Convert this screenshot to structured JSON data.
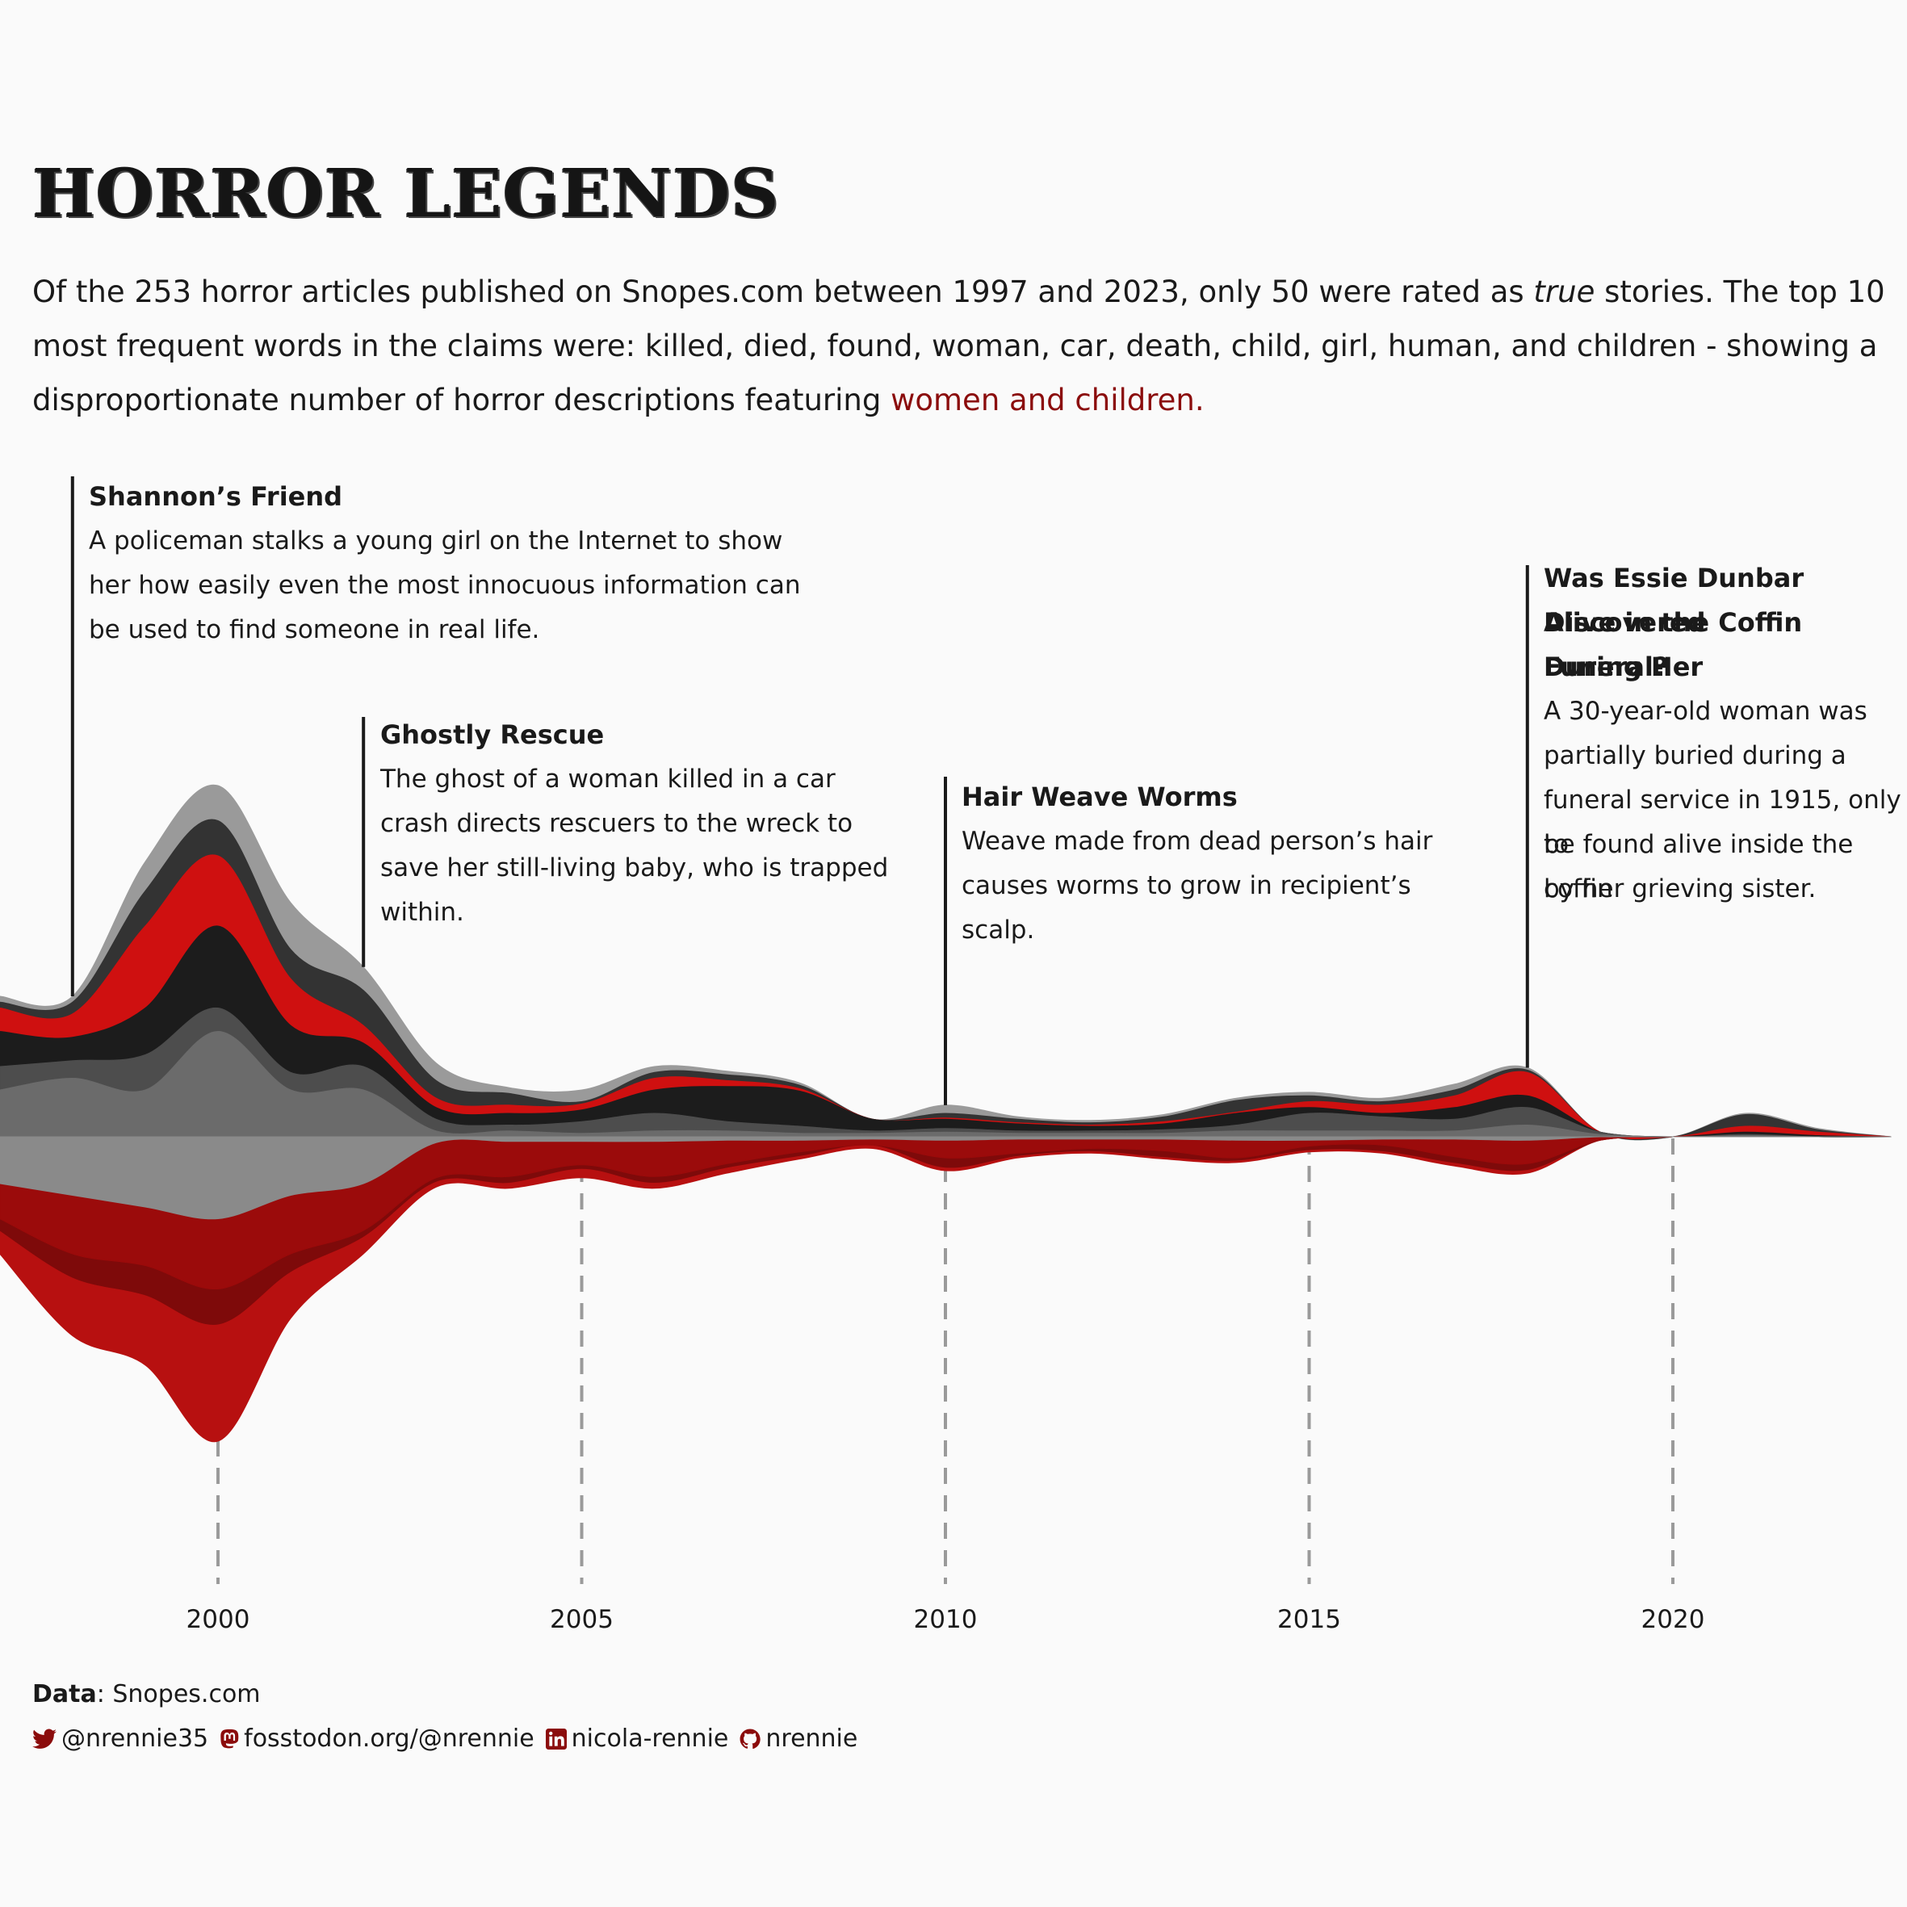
{
  "title": "HORROR LEGENDS",
  "subtitle": {
    "part1": "Of the 253 horror articles published on Snopes.com between 1997 and 2023, only 50 were rated as ",
    "emph": "true",
    "part2": " stories. The top 10 most frequent words in the claims were: killed, died, found, woman, car, death, child, girl, human, and children - showing a disproportionate number of horror descriptions featuring ",
    "highlight": "women and children."
  },
  "annotations": [
    {
      "year": 1998,
      "title": "Shannon’s Friend",
      "lines": [
        "A policeman stalks a young girl on the Internet to show",
        "her how easily even the most innocuous information can",
        "be used to find someone in real life."
      ]
    },
    {
      "year": 2002,
      "title": "Ghostly Rescue",
      "lines": [
        "The ghost of a woman killed in a car",
        "crash directs rescuers to the wreck to",
        "save her still-living baby, who is trapped",
        "within."
      ]
    },
    {
      "year": 2010,
      "title": "Hair Weave Worms",
      "lines": [
        "Weave made from dead person’s hair",
        "causes worms to grow in recipient’s",
        "scalp."
      ]
    },
    {
      "year": 2018,
      "title_lines": [
        "Was Essie Dunbar Discovered",
        "Alive in the Coffin During Her",
        "Funeral?"
      ],
      "lines": [
        "A 30-year-old woman was",
        "partially buried during a",
        "funeral service in 1915, only to",
        "be found alive inside the coffin",
        "by her grieving sister."
      ]
    }
  ],
  "caption": {
    "data_label": "Data",
    "data_source": ": Snopes.com"
  },
  "social": {
    "twitter": "@nrennie35",
    "mastodon": "fosstodon.org/@nrennie",
    "linkedin": "nicola-rennie",
    "github": "nrennie"
  },
  "colors": {
    "background": "#fafafa",
    "accent": "#8b0c0c",
    "bright_red": "#cf1010"
  },
  "chart_data": {
    "type": "area",
    "subtype": "streamgraph",
    "x": [
      1997,
      1998,
      1999,
      2000,
      2001,
      2002,
      2003,
      2004,
      2005,
      2006,
      2007,
      2008,
      2009,
      2010,
      2011,
      2012,
      2013,
      2014,
      2015,
      2016,
      2017,
      2018,
      2019,
      2020,
      2021,
      2022,
      2023
    ],
    "x_ticks": [
      2000,
      2005,
      2010,
      2015,
      2020
    ],
    "x_tick_labels": [
      "2000",
      "2005",
      "2010",
      "2015",
      "2020"
    ],
    "series": [
      {
        "name": "upper-1",
        "color": "#9a9a9a",
        "values": [
          0.5,
          0.5,
          2.5,
          3,
          4,
          2,
          1.5,
          0.5,
          1,
          0.5,
          0.3,
          0.2,
          0,
          0.7,
          0.2,
          0.2,
          0.2,
          0.2,
          0.3,
          0.3,
          0.5,
          0.2,
          0,
          0,
          0.1,
          0.1,
          0
        ]
      },
      {
        "name": "upper-2",
        "color": "#333333",
        "values": [
          0.5,
          1,
          3,
          3,
          2.5,
          3,
          1.5,
          1,
          0.2,
          0.5,
          0.5,
          0.3,
          0,
          0.4,
          0.3,
          0.2,
          0.4,
          1,
          0.5,
          0.3,
          0.5,
          0.2,
          0,
          0,
          1,
          0.2,
          0
        ]
      },
      {
        "name": "upper-3",
        "color": "#cf1010",
        "values": [
          2,
          2,
          7,
          6,
          4,
          1.5,
          0.8,
          0.7,
          0.5,
          1,
          0.5,
          0.2,
          0,
          0.1,
          0.1,
          0.1,
          0.2,
          0.1,
          0.5,
          0.7,
          1,
          2,
          0,
          0,
          0.5,
          0.3,
          0
        ]
      },
      {
        "name": "upper-4",
        "color": "#1c1c1c",
        "values": [
          3,
          2,
          4,
          7,
          4,
          2,
          1,
          1,
          1,
          2,
          3,
          3,
          1,
          0.8,
          0.6,
          0.4,
          0.5,
          1,
          0.5,
          0.3,
          1,
          1,
          0,
          0,
          0.2,
          0.1,
          0
        ]
      },
      {
        "name": "upper-5",
        "color": "#4d4d4d",
        "values": [
          2,
          1.5,
          3,
          2,
          1.5,
          2,
          1,
          0.5,
          1,
          1.5,
          0.8,
          0.6,
          0.2,
          0.3,
          0.2,
          0.2,
          0.3,
          0.5,
          1.5,
          1.2,
          1,
          1.5,
          0.2,
          0,
          0.1,
          0,
          0
        ]
      },
      {
        "name": "upper-6",
        "color": "#6b6b6b",
        "values": [
          4,
          5,
          4,
          9,
          4,
          4,
          0.5,
          0.5,
          0.3,
          0.5,
          0.5,
          0.3,
          0.3,
          0.4,
          0.3,
          0.3,
          0.3,
          0.5,
          0.5,
          0.5,
          0.5,
          1,
          0.2,
          0,
          0.1,
          0,
          0
        ]
      },
      {
        "name": "lower-1",
        "color": "#8a8a8a",
        "values": [
          4,
          5,
          6,
          7,
          5,
          4,
          0.5,
          0.4,
          0.4,
          0.4,
          0.3,
          0.3,
          0.2,
          0.3,
          0.2,
          0.2,
          0.2,
          0.3,
          0.3,
          0.2,
          0.2,
          0.3,
          0,
          0,
          0,
          0,
          0
        ]
      },
      {
        "name": "lower-2",
        "color": "#9b0b0b",
        "values": [
          3,
          5,
          5,
          6,
          5,
          4,
          3,
          3,
          2,
          3,
          2,
          1,
          0.5,
          1.5,
          1.2,
          0.8,
          1,
          1.5,
          0.5,
          0.5,
          1.5,
          2,
          0.3,
          0,
          0,
          0,
          0
        ]
      },
      {
        "name": "lower-3",
        "color": "#7e0a0a",
        "values": [
          1,
          2,
          2.5,
          3,
          1.5,
          0.5,
          0.3,
          0.5,
          0.3,
          0.5,
          0.3,
          0.3,
          0,
          0.8,
          0.2,
          0.2,
          0.5,
          0.2,
          0.3,
          0.5,
          0.5,
          0.5,
          0,
          0,
          0,
          0,
          0
        ]
      },
      {
        "name": "lower-4",
        "color": "#b71010",
        "values": [
          2,
          5,
          6,
          10,
          4,
          1.5,
          0.5,
          0.5,
          0.8,
          0.5,
          0.5,
          0.3,
          0.3,
          0.3,
          0.2,
          0.2,
          0.2,
          0.2,
          0.2,
          0.2,
          0.3,
          0.3,
          0,
          0,
          0,
          0,
          0
        ]
      }
    ],
    "title": "",
    "xlabel": "",
    "ylabel": "",
    "grid": "dashed vertical lines at x ticks"
  }
}
